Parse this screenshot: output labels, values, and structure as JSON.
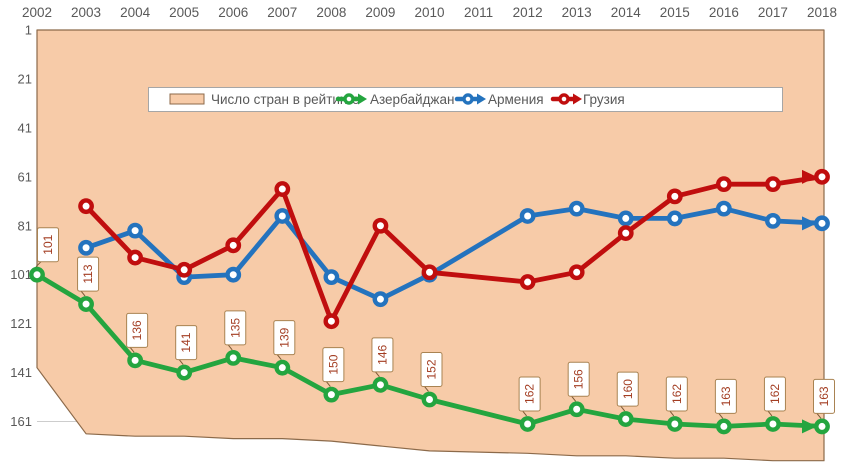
{
  "chart_data": {
    "type": "line",
    "title": "",
    "x_labels": [
      "2002",
      "2003",
      "2004",
      "2005",
      "2006",
      "2007",
      "2008",
      "2009",
      "2010",
      "2011",
      "2012",
      "2013",
      "2014",
      "2015",
      "2016",
      "2017",
      "2018"
    ],
    "y_axis": {
      "inverted": true,
      "min": 1,
      "max": 181,
      "ticks": [
        "1",
        "21",
        "41",
        "61",
        "81",
        "101",
        "121",
        "141",
        "161"
      ],
      "gridline_at": 161,
      "gridline_color": "#CDCDCD"
    },
    "x_axis": {
      "position": "top"
    },
    "area_series": {
      "name": "Число стран в рейтинге",
      "values": [
        139,
        166,
        167,
        167,
        168,
        168,
        169,
        171,
        173,
        null,
        174,
        175,
        175,
        176,
        176,
        177,
        177
      ],
      "fill": "#F7CBA8",
      "border": "#8C6A4A"
    },
    "series": [
      {
        "name": "Азербайджан",
        "color": "#24A53F",
        "data_labels": true,
        "values": [
          101,
          113,
          136,
          141,
          135,
          139,
          150,
          146,
          152,
          null,
          162,
          156,
          160,
          162,
          163,
          162,
          163
        ]
      },
      {
        "name": "Армения",
        "color": "#2473BE",
        "data_labels": false,
        "values": [
          null,
          90,
          83,
          102,
          101,
          77,
          102,
          111,
          101,
          null,
          77,
          74,
          78,
          78,
          74,
          79,
          80
        ]
      },
      {
        "name": "Грузия",
        "color": "#C00E0E",
        "data_labels": false,
        "values": [
          null,
          73,
          94,
          99,
          89,
          66,
          120,
          81,
          100,
          null,
          104,
          100,
          84,
          69,
          64,
          64,
          61
        ]
      }
    ],
    "legend": {
      "position": "top-center",
      "entries": [
        "Число стран в рейтинге",
        "Азербайджан",
        "Армения",
        "Грузия"
      ],
      "border_color": "#A6A6A6",
      "fill": "#FFFFFF",
      "text_color": "#595959"
    },
    "data_label_style": {
      "text_color": "#A33D22",
      "border_color": "#A98352",
      "fill": "#FFFFFF",
      "leader_color": "#7B5A36",
      "rotation": -90
    },
    "axis_text_color": "#595959"
  }
}
